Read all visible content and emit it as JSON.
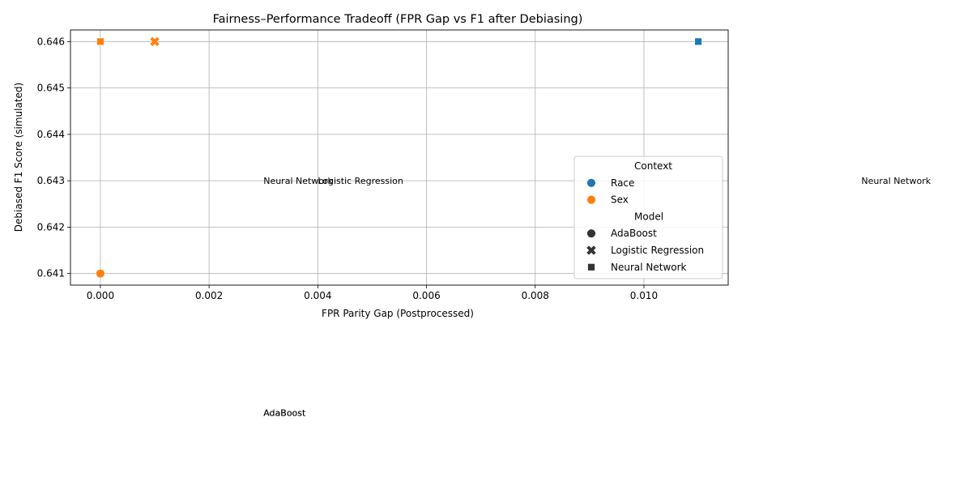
{
  "chart_data": {
    "type": "scatter",
    "title": "Fairness–Performance Tradeoff (FPR Gap vs F1 after Debiasing)",
    "xlabel": "FPR Parity Gap (Postprocessed)",
    "ylabel": "Debiased F1 Score (simulated)",
    "xlim": [
      -0.00055,
      0.01155
    ],
    "ylim": [
      0.64075,
      0.64625
    ],
    "xticks": [
      0.0,
      0.002,
      0.004,
      0.006,
      0.008,
      0.01
    ],
    "xtick_labels": [
      "0.000",
      "0.002",
      "0.004",
      "0.006",
      "0.008",
      "0.010"
    ],
    "yticks": [
      0.641,
      0.642,
      0.643,
      0.644,
      0.645,
      0.646
    ],
    "ytick_labels": [
      "0.641",
      "0.642",
      "0.643",
      "0.644",
      "0.645",
      "0.646"
    ],
    "grid": true,
    "legend_placement": "center-right",
    "legend": {
      "hue_title": "Context",
      "hue": [
        {
          "label": "Race",
          "color": "#1f77b4"
        },
        {
          "label": "Sex",
          "color": "#ff7f0e"
        }
      ],
      "style_title": "Model",
      "style": [
        {
          "label": "AdaBoost",
          "marker": "circle"
        },
        {
          "label": "Logistic Regression",
          "marker": "x"
        },
        {
          "label": "Neural Network",
          "marker": "square"
        }
      ]
    },
    "points": [
      {
        "x": 0.0,
        "y": 0.641,
        "context": "Race",
        "model": "AdaBoost"
      },
      {
        "x": 0.0,
        "y": 0.641,
        "context": "Sex",
        "model": "AdaBoost"
      },
      {
        "x": 0.001,
        "y": 0.646,
        "context": "Race",
        "model": "Logistic Regression"
      },
      {
        "x": 0.001,
        "y": 0.646,
        "context": "Sex",
        "model": "Logistic Regression"
      },
      {
        "x": 0.011,
        "y": 0.646,
        "context": "Race",
        "model": "Neural Network"
      },
      {
        "x": 0.0,
        "y": 0.646,
        "context": "Sex",
        "model": "Neural Network"
      }
    ],
    "annotations": [
      {
        "text": "Neural Network",
        "x": 0.003,
        "y": 0.643
      },
      {
        "text": "Logistic Regression",
        "x": 0.004,
        "y": 0.643
      },
      {
        "text": "Neural Network",
        "x": 0.014,
        "y": 0.643
      },
      {
        "text": "AdaBoost",
        "x": 0.003,
        "y": 0.638
      },
      {
        "text": "AdaBoost",
        "x": 0.003,
        "y": 0.638
      }
    ]
  }
}
